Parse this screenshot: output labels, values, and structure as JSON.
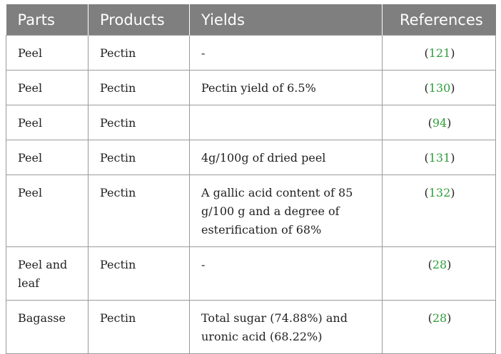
{
  "table": {
    "headers": [
      "Parts",
      "Products",
      "Yields",
      "References"
    ],
    "rows": [
      {
        "part": "Peel",
        "product": "Pectin",
        "yield": "-",
        "ref": "121"
      },
      {
        "part": "Peel",
        "product": "Pectin",
        "yield": "Pectin yield of 6.5%",
        "ref": "130"
      },
      {
        "part": "Peel",
        "product": "Pectin",
        "yield": "",
        "ref": "94"
      },
      {
        "part": "Peel",
        "product": "Pectin",
        "yield": "4g/100g of dried peel",
        "ref": "131"
      },
      {
        "part": "Peel",
        "product": "Pectin",
        "yield": "A gallic acid content of 85 g/100 g and a degree of esterification of 68%",
        "ref": "132"
      },
      {
        "part": "Peel and leaf",
        "product": "Pectin",
        "yield": "-",
        "ref": "28"
      },
      {
        "part": "Bagasse",
        "product": "Pectin",
        "yield": "Total sugar (74.88%) and uronic acid (68.22%)",
        "ref": "28"
      }
    ],
    "ref_open": "(",
    "ref_close": ")"
  },
  "colors": {
    "header_bg": "#7f7f7f",
    "header_text": "#ffffff",
    "reference_link": "#2e9e3a",
    "border": "#9a9a9a"
  }
}
